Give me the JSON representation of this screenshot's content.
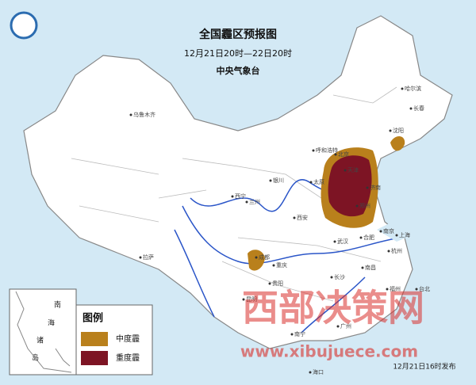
{
  "header": {
    "title": "全国霾区预报图",
    "period": "12月21日20时—22日20时",
    "issuer": "中央气象台"
  },
  "legend": {
    "title": "图例",
    "items": [
      {
        "label": "中度霾",
        "color": "#b9801c"
      },
      {
        "label": "重度霾",
        "color": "#7d1424"
      }
    ]
  },
  "cities": [
    "乌鲁木齐",
    "哈尔滨",
    "长春",
    "沈阳",
    "呼和浩特",
    "北京",
    "天津",
    "太原",
    "银川",
    "兰州",
    "西宁",
    "西安",
    "郑州",
    "济南",
    "合肥",
    "南京",
    "上海",
    "武汉",
    "杭州",
    "成都",
    "重庆",
    "贵阳",
    "长沙",
    "南昌",
    "福州",
    "拉萨",
    "昆明",
    "南宁",
    "广州",
    "海口",
    "台北"
  ],
  "inset": {
    "labels": [
      "南",
      "海",
      "诸",
      "岛"
    ]
  },
  "watermark": {
    "text": "西部决策网",
    "url": "www.xibujuece.com"
  },
  "footer": "12月21日16时发布"
}
